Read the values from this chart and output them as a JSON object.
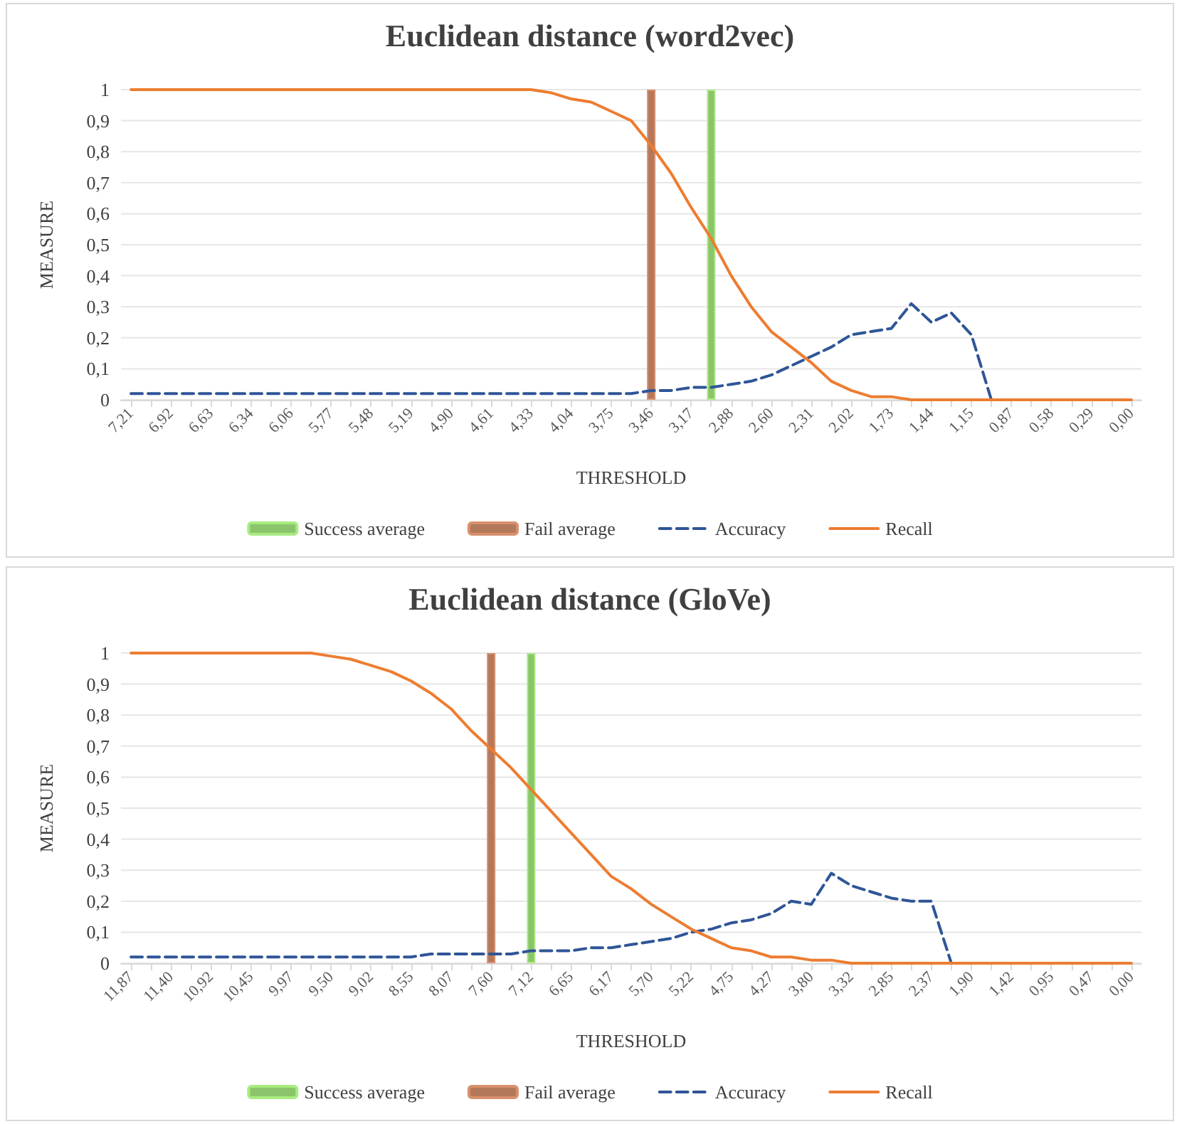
{
  "chart_data": [
    {
      "type": "line",
      "title": "Euclidean distance (word2vec)",
      "xlabel": "THRESHOLD",
      "ylabel": "MEASURE",
      "legend": "bottom",
      "grid": "y",
      "marker": "none",
      "categories": [
        "7,21",
        null,
        "6,92",
        null,
        "6,63",
        null,
        "6,34",
        null,
        "6,06",
        null,
        "5,77",
        null,
        "5,48",
        null,
        "5,19",
        null,
        "4,90",
        null,
        "4,61",
        null,
        "4,33",
        null,
        "4,04",
        null,
        "3,75",
        null,
        "3,46",
        null,
        "3,17",
        null,
        "2,88",
        null,
        "2,60",
        null,
        "2,31",
        null,
        "2,02",
        null,
        "1,73",
        null,
        "1,44",
        null,
        "1,15",
        null,
        "0,87",
        null,
        "0,58",
        null,
        "0,29",
        null,
        "0,00"
      ],
      "ylim": [
        0,
        1
      ],
      "yticks": [
        {
          "value": 0,
          "label": "0"
        },
        {
          "value": 0.1,
          "label": "0,1"
        },
        {
          "value": 0.2,
          "label": "0,2"
        },
        {
          "value": 0.3,
          "label": "0,3"
        },
        {
          "value": 0.4,
          "label": "0,4"
        },
        {
          "value": 0.5,
          "label": "0,5"
        },
        {
          "value": 0.6,
          "label": "0,6"
        },
        {
          "value": 0.7,
          "label": "0,7"
        },
        {
          "value": 0.8,
          "label": "0,8"
        },
        {
          "value": 0.9,
          "label": "0,9"
        },
        {
          "value": 1,
          "label": "1"
        }
      ],
      "series": [
        {
          "name": "Success average",
          "type": "bar",
          "color": "#8cc46c",
          "values": [
            null,
            null,
            null,
            null,
            null,
            null,
            null,
            null,
            null,
            null,
            null,
            null,
            null,
            null,
            null,
            null,
            null,
            null,
            null,
            null,
            null,
            null,
            null,
            null,
            null,
            null,
            null,
            null,
            null,
            1,
            null,
            null,
            null,
            null,
            null,
            null,
            null,
            null,
            null,
            null,
            null,
            null,
            null,
            null,
            null,
            null,
            null,
            null,
            null,
            null,
            null
          ]
        },
        {
          "name": "Fail average",
          "type": "bar",
          "color": "#b4785a",
          "values": [
            null,
            null,
            null,
            null,
            null,
            null,
            null,
            null,
            null,
            null,
            null,
            null,
            null,
            null,
            null,
            null,
            null,
            null,
            null,
            null,
            null,
            null,
            null,
            null,
            null,
            null,
            1,
            null,
            null,
            null,
            null,
            null,
            null,
            null,
            null,
            null,
            null,
            null,
            null,
            null,
            null,
            null,
            null,
            null,
            null,
            null,
            null,
            null,
            null,
            null,
            null
          ]
        },
        {
          "name": "Accuracy",
          "line_style": "dashed",
          "color": "#2f5597",
          "values": [
            0.02,
            0.02,
            0.02,
            0.02,
            0.02,
            0.02,
            0.02,
            0.02,
            0.02,
            0.02,
            0.02,
            0.02,
            0.02,
            0.02,
            0.02,
            0.02,
            0.02,
            0.02,
            0.02,
            0.02,
            0.02,
            0.02,
            0.02,
            0.02,
            0.02,
            0.02,
            0.03,
            0.03,
            0.04,
            0.04,
            0.05,
            0.06,
            0.08,
            0.11,
            0.14,
            0.17,
            0.21,
            0.22,
            0.23,
            0.31,
            0.25,
            0.28,
            0.21,
            0,
            0,
            null,
            null,
            null,
            null,
            null,
            null
          ]
        },
        {
          "name": "Recall",
          "line_style": "solid",
          "color": "#ed7d31",
          "values": [
            1,
            1,
            1,
            1,
            1,
            1,
            1,
            1,
            1,
            1,
            1,
            1,
            1,
            1,
            1,
            1,
            1,
            1,
            1,
            1,
            1,
            0.99,
            0.97,
            0.96,
            0.93,
            0.9,
            0.82,
            0.73,
            0.62,
            0.52,
            0.4,
            0.3,
            0.22,
            0.17,
            0.12,
            0.06,
            0.03,
            0.01,
            0.01,
            0,
            0,
            0,
            0,
            0,
            0,
            0,
            0,
            0,
            0,
            0,
            0
          ]
        }
      ]
    },
    {
      "type": "line",
      "title": "Euclidean distance (GloVe)",
      "xlabel": "THRESHOLD",
      "ylabel": "MEASURE",
      "legend": "bottom",
      "grid": "y",
      "marker": "none",
      "categories": [
        "11,87",
        null,
        "11,40",
        null,
        "10,92",
        null,
        "10,45",
        null,
        "9,97",
        null,
        "9,50",
        null,
        "9,02",
        null,
        "8,55",
        null,
        "8,07",
        null,
        "7,60",
        null,
        "7,12",
        null,
        "6,65",
        null,
        "6,17",
        null,
        "5,70",
        null,
        "5,22",
        null,
        "4,75",
        null,
        "4,27",
        null,
        "3,80",
        null,
        "3,32",
        null,
        "2,85",
        null,
        "2,37",
        null,
        "1,90",
        null,
        "1,42",
        null,
        "0,95",
        null,
        "0,47",
        null,
        "0,00"
      ],
      "ylim": [
        0,
        1
      ],
      "yticks": [
        {
          "value": 0,
          "label": "0"
        },
        {
          "value": 0.1,
          "label": "0,1"
        },
        {
          "value": 0.2,
          "label": "0,2"
        },
        {
          "value": 0.3,
          "label": "0,3"
        },
        {
          "value": 0.4,
          "label": "0,4"
        },
        {
          "value": 0.5,
          "label": "0,5"
        },
        {
          "value": 0.6,
          "label": "0,6"
        },
        {
          "value": 0.7,
          "label": "0,7"
        },
        {
          "value": 0.8,
          "label": "0,8"
        },
        {
          "value": 0.9,
          "label": "0,9"
        },
        {
          "value": 1,
          "label": "1"
        }
      ],
      "series": [
        {
          "name": "Success average",
          "type": "bar",
          "color": "#8cc46c",
          "values": [
            null,
            null,
            null,
            null,
            null,
            null,
            null,
            null,
            null,
            null,
            null,
            null,
            null,
            null,
            null,
            null,
            null,
            null,
            null,
            null,
            1,
            null,
            null,
            null,
            null,
            null,
            null,
            null,
            null,
            null,
            null,
            null,
            null,
            null,
            null,
            null,
            null,
            null,
            null,
            null,
            null,
            null,
            null,
            null,
            null,
            null,
            null,
            null,
            null,
            null,
            null
          ]
        },
        {
          "name": "Fail average",
          "type": "bar",
          "color": "#b4785a",
          "values": [
            null,
            null,
            null,
            null,
            null,
            null,
            null,
            null,
            null,
            null,
            null,
            null,
            null,
            null,
            null,
            null,
            null,
            null,
            1,
            null,
            null,
            null,
            null,
            null,
            null,
            null,
            null,
            null,
            null,
            null,
            null,
            null,
            null,
            null,
            null,
            null,
            null,
            null,
            null,
            null,
            null,
            null,
            null,
            null,
            null,
            null,
            null,
            null,
            null,
            null,
            null
          ]
        },
        {
          "name": "Accuracy",
          "line_style": "dashed",
          "color": "#2f5597",
          "values": [
            0.02,
            0.02,
            0.02,
            0.02,
            0.02,
            0.02,
            0.02,
            0.02,
            0.02,
            0.02,
            0.02,
            0.02,
            0.02,
            0.02,
            0.02,
            0.03,
            0.03,
            0.03,
            0.03,
            0.03,
            0.04,
            0.04,
            0.04,
            0.05,
            0.05,
            0.06,
            0.07,
            0.08,
            0.1,
            0.11,
            0.13,
            0.14,
            0.16,
            0.2,
            0.19,
            0.29,
            0.25,
            0.23,
            0.21,
            0.2,
            0.2,
            0,
            0,
            null,
            null,
            null,
            null,
            null,
            null,
            null,
            null
          ]
        },
        {
          "name": "Recall",
          "line_style": "solid",
          "color": "#ed7d31",
          "values": [
            1,
            1,
            1,
            1,
            1,
            1,
            1,
            1,
            1,
            1,
            0.99,
            0.98,
            0.96,
            0.94,
            0.91,
            0.87,
            0.82,
            0.75,
            0.69,
            0.63,
            0.56,
            0.49,
            0.42,
            0.35,
            0.28,
            0.24,
            0.19,
            0.15,
            0.11,
            0.08,
            0.05,
            0.04,
            0.02,
            0.02,
            0.01,
            0.01,
            0,
            0,
            0,
            0,
            0,
            0,
            0,
            0,
            0,
            0,
            0,
            0,
            0,
            0,
            0
          ]
        }
      ]
    }
  ]
}
